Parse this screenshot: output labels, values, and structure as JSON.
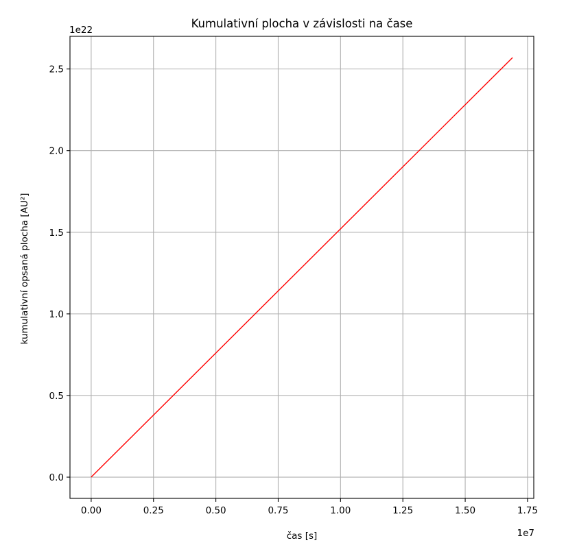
{
  "chart_data": {
    "type": "line",
    "title": "Kumulativní plocha v závislosti na čase",
    "xlabel": "čas [s]",
    "ylabel": "kumulativní opsaná plocha [AU²]",
    "x_offset_label": "1e7",
    "y_offset_label": "1e22",
    "xlim": [
      -0.085,
      1.775
    ],
    "ylim": [
      -0.13,
      2.7
    ],
    "x_ticks": [
      0.0,
      0.25,
      0.5,
      0.75,
      1.0,
      1.25,
      1.5,
      1.75
    ],
    "x_tick_labels": [
      "0.00",
      "0.25",
      "0.50",
      "0.75",
      "1.00",
      "1.25",
      "1.50",
      "1.75"
    ],
    "y_ticks": [
      0.0,
      0.5,
      1.0,
      1.5,
      2.0,
      2.5
    ],
    "y_tick_labels": [
      "0.0",
      "0.5",
      "1.0",
      "1.5",
      "2.0",
      "2.5"
    ],
    "grid": true,
    "series": [
      {
        "color": "#ff0000",
        "x": [
          0.0,
          1.69
        ],
        "y": [
          0.0,
          2.57
        ]
      }
    ]
  }
}
